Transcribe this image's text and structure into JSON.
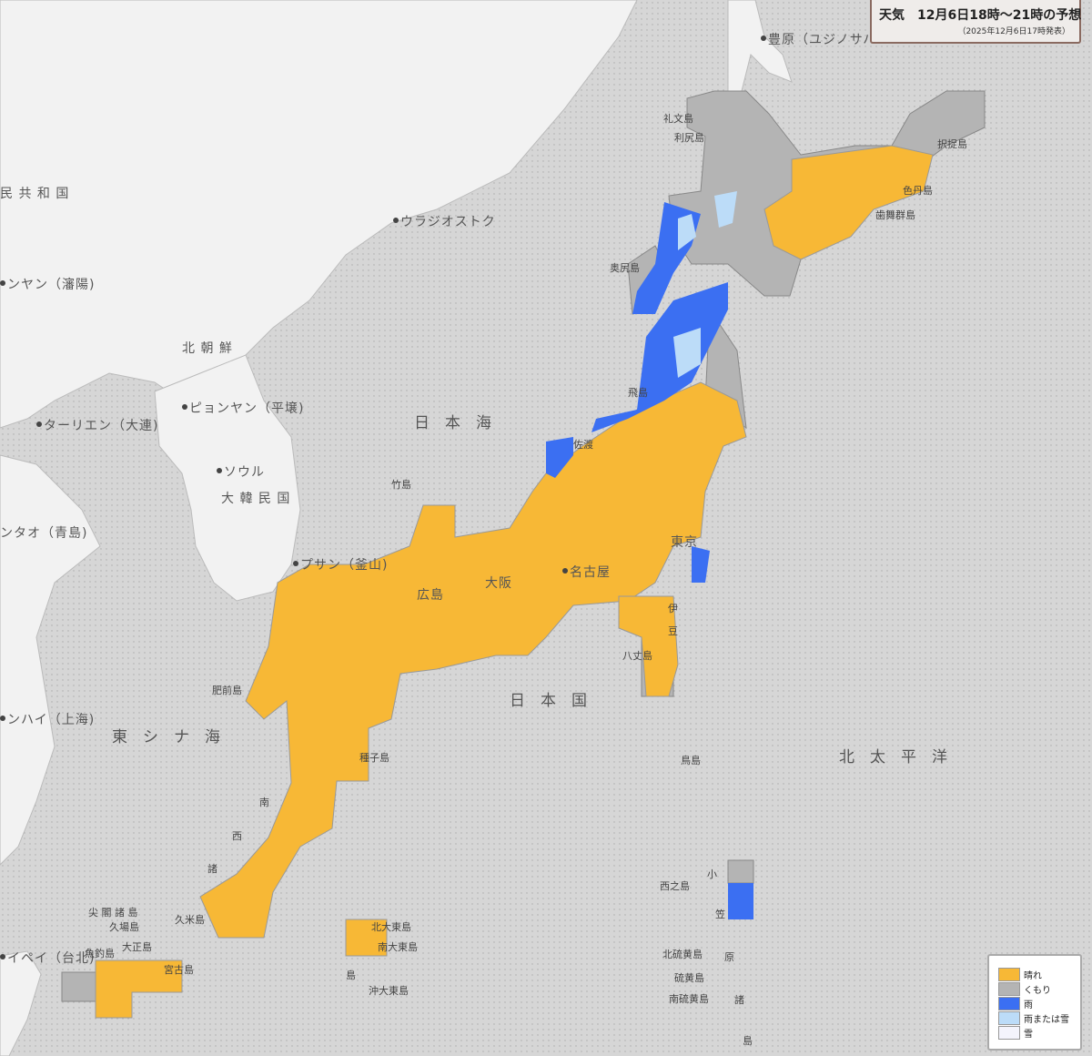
{
  "header": {
    "title": "天気　12月6日18時〜21時の予想",
    "issued": "（2025年12月6日17時発表）"
  },
  "legend": {
    "items": [
      {
        "label": "晴れ",
        "color": "#f7b836"
      },
      {
        "label": "くもり",
        "color": "#b4b4b4"
      },
      {
        "label": "雨",
        "color": "#3b6ff2"
      },
      {
        "label": "雨または雪",
        "color": "#bcdcf8"
      },
      {
        "label": "雪",
        "color": "#f4f4fc"
      }
    ]
  },
  "colors": {
    "sea": "#d6d6d6",
    "foreign_land": "#f2f2f2"
  },
  "places": [
    "豊原（ユジノサハ",
    "礼文島",
    "利尻島",
    "民 共 和 国",
    "ウラジオストク",
    "ンヤン（瀋陽)",
    "北 朝 鮮",
    "ピョンヤン（平壌)",
    "ターリエン（大連)",
    "ソウル",
    "大 韓 民 国",
    "ンタオ（青島)",
    "プサン（釜山)",
    "竹島",
    "奥尻島",
    "飛島",
    "佐渡",
    "色丹島",
    "歯舞群島",
    "東京",
    "名古屋",
    "大阪",
    "広島",
    "八丈島",
    "鳥島",
    "肥前島",
    "種子島",
    "久米島",
    "尖 閣 諸 島",
    "久場島",
    "大正島",
    "魚釣島",
    "宮古島",
    "イペイ（台北)",
    "ンハイ（上海)",
    "北大東島",
    "南大東島",
    "沖大東島",
    "西之島",
    "北硫黄島",
    "硫黄島",
    "南硫黄島",
    "小",
    "笠",
    "原",
    "諸",
    "島",
    "南",
    "西",
    "諸",
    "島",
    "伊",
    "豆",
    "択捉島"
  ],
  "seas": [
    "日　本　海",
    "日　本　国",
    "東　シ　ナ　海",
    "北　太　平　洋"
  ]
}
